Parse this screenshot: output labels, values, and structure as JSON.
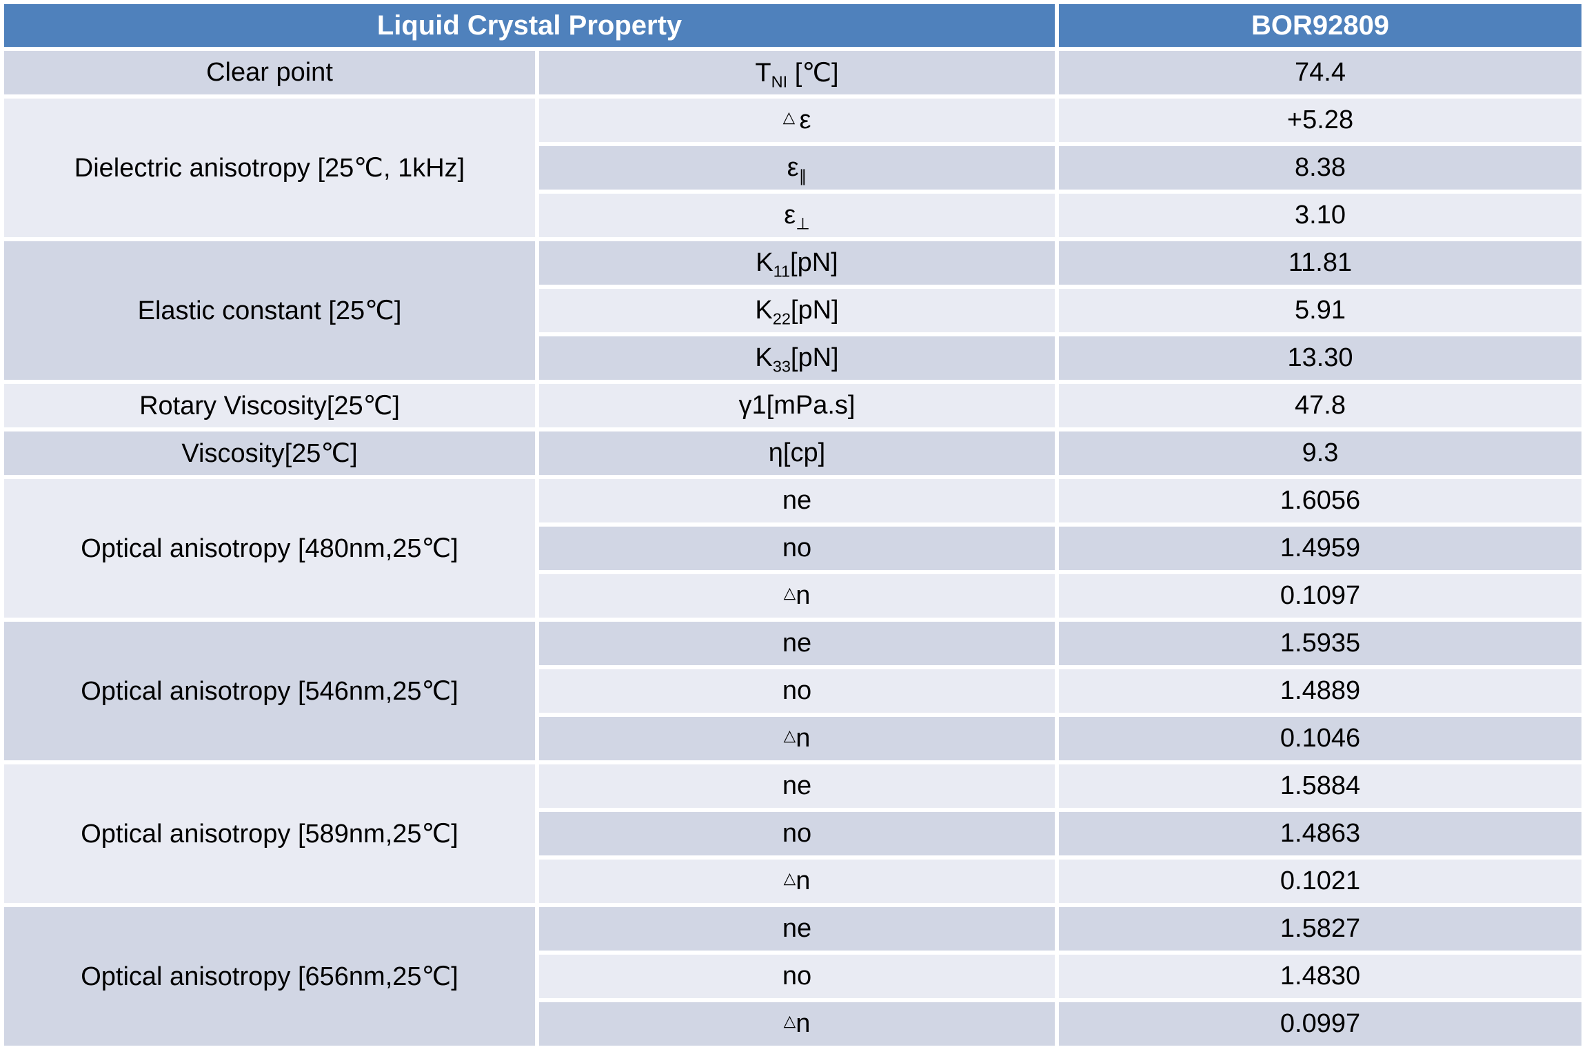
{
  "colors": {
    "header_bg": "#4f81bc",
    "header_text": "#ffffff",
    "band_dark": "#d1d6e4",
    "band_light": "#e9ebf3",
    "body_text": "#000000",
    "grid_gap": "#ffffff"
  },
  "table": {
    "header": {
      "property_label": "Liquid Crystal Property",
      "sample_label": "BOR92809"
    },
    "groups": [
      {
        "label": "Clear point"
      },
      {
        "label": "Dielectric anisotropy [25℃, 1kHz]"
      },
      {
        "label": "Elastic constant [25℃]"
      },
      {
        "label": "Rotary Viscosity[25℃]"
      },
      {
        "label": "Viscosity[25℃]"
      },
      {
        "label": "Optical anisotropy [480nm,25℃]"
      },
      {
        "label": "Optical anisotropy [546nm,25℃]"
      },
      {
        "label": "Optical anisotropy [589nm,25℃]"
      },
      {
        "label": "Optical anisotropy [656nm,25℃]"
      }
    ],
    "rows": [
      {
        "symbol": {
          "tri": "",
          "base": "T",
          "sub": "NI",
          "post": " [℃]"
        },
        "value": "74.4"
      },
      {
        "symbol": {
          "tri": "△ ",
          "base": "ε",
          "sub": "",
          "post": ""
        },
        "value": "+5.28"
      },
      {
        "symbol": {
          "tri": "",
          "base": "ε",
          "sub": "∥",
          "post": ""
        },
        "value": "8.38"
      },
      {
        "symbol": {
          "tri": "",
          "base": "ε",
          "sub": "⊥",
          "post": ""
        },
        "value": "3.10"
      },
      {
        "symbol": {
          "tri": "",
          "base": "K",
          "sub": "11",
          "post": "[pN]"
        },
        "value": "11.81"
      },
      {
        "symbol": {
          "tri": "",
          "base": "K",
          "sub": "22",
          "post": "[pN]"
        },
        "value": "5.91"
      },
      {
        "symbol": {
          "tri": "",
          "base": "K",
          "sub": "33",
          "post": "[pN]"
        },
        "value": "13.30"
      },
      {
        "symbol": {
          "tri": "",
          "base": "γ1[mPa.s]",
          "sub": "",
          "post": ""
        },
        "value": "47.8"
      },
      {
        "symbol": {
          "tri": "",
          "base": "η[cp]",
          "sub": "",
          "post": ""
        },
        "value": "9.3"
      },
      {
        "symbol": {
          "tri": "",
          "base": "ne",
          "sub": "",
          "post": ""
        },
        "value": "1.6056"
      },
      {
        "symbol": {
          "tri": "",
          "base": "no",
          "sub": "",
          "post": ""
        },
        "value": "1.4959"
      },
      {
        "symbol": {
          "tri": "△",
          "base": "n",
          "sub": "",
          "post": ""
        },
        "value": "0.1097"
      },
      {
        "symbol": {
          "tri": "",
          "base": "ne",
          "sub": "",
          "post": ""
        },
        "value": "1.5935"
      },
      {
        "symbol": {
          "tri": "",
          "base": "no",
          "sub": "",
          "post": ""
        },
        "value": "1.4889"
      },
      {
        "symbol": {
          "tri": "△",
          "base": "n",
          "sub": "",
          "post": ""
        },
        "value": "0.1046"
      },
      {
        "symbol": {
          "tri": "",
          "base": "ne",
          "sub": "",
          "post": ""
        },
        "value": "1.5884"
      },
      {
        "symbol": {
          "tri": "",
          "base": "no",
          "sub": "",
          "post": ""
        },
        "value": "1.4863"
      },
      {
        "symbol": {
          "tri": "△",
          "base": "n",
          "sub": "",
          "post": ""
        },
        "value": "0.1021"
      },
      {
        "symbol": {
          "tri": "",
          "base": "ne",
          "sub": "",
          "post": ""
        },
        "value": "1.5827"
      },
      {
        "symbol": {
          "tri": "",
          "base": "no",
          "sub": "",
          "post": ""
        },
        "value": "1.4830"
      },
      {
        "symbol": {
          "tri": "△",
          "base": "n",
          "sub": "",
          "post": ""
        },
        "value": "0.0997"
      }
    ]
  }
}
